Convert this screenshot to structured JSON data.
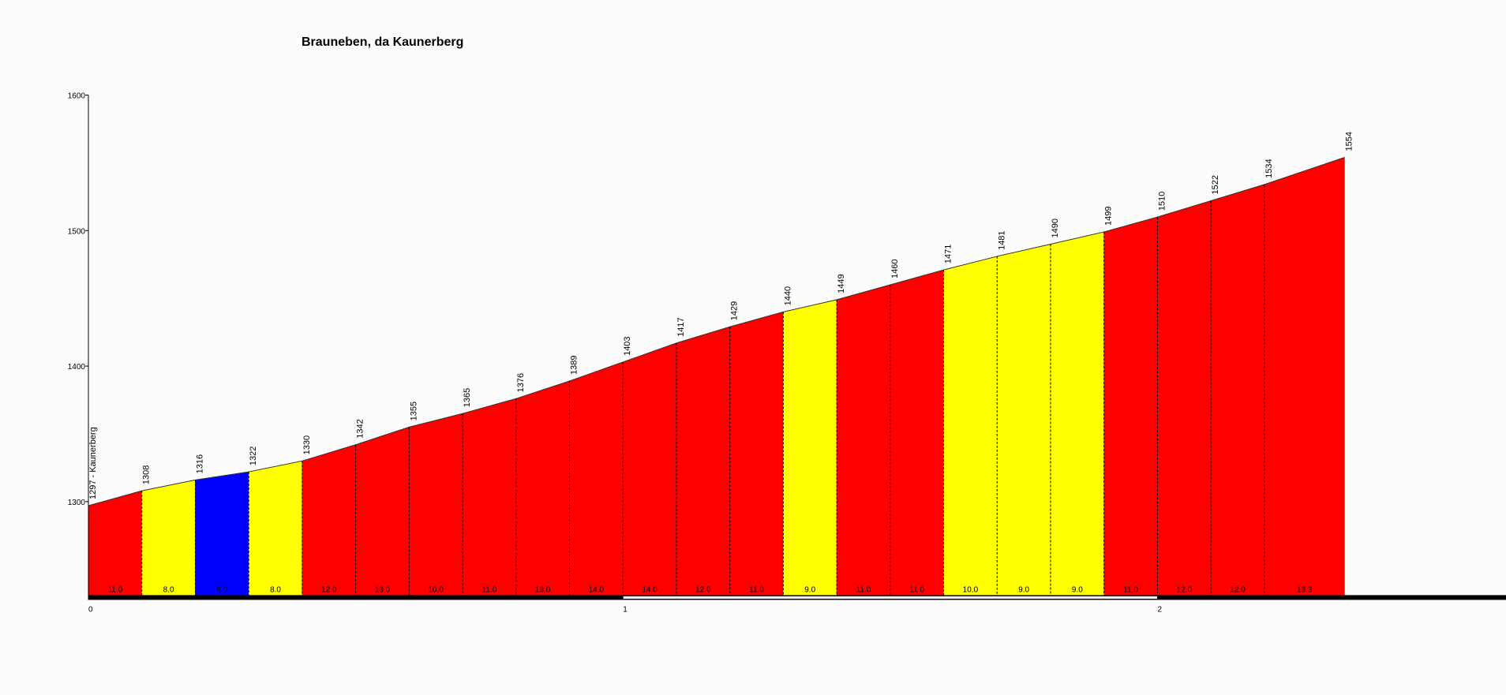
{
  "chart_data": {
    "type": "profile",
    "title": "Brauneben, da Kaunerberg",
    "x": [
      0,
      0.1,
      0.2,
      0.3,
      0.4,
      0.5,
      0.6,
      0.7,
      0.8,
      0.9,
      1.0,
      1.1,
      1.2,
      1.3,
      1.4,
      1.5,
      1.6,
      1.7,
      1.8,
      1.9,
      2.0,
      2.1,
      2.2,
      2.35
    ],
    "values": [
      1297,
      1308,
      1316,
      1322,
      1330,
      1342,
      1355,
      1365,
      1376,
      1389,
      1403,
      1417,
      1429,
      1440,
      1449,
      1460,
      1471,
      1481,
      1490,
      1499,
      1510,
      1522,
      1534,
      1554
    ],
    "value_labels": [
      "1297 - Kaunerberg",
      "1308",
      "1316",
      "1322",
      "1330",
      "1342",
      "1355",
      "1365",
      "1376",
      "1389",
      "1403",
      "1417",
      "1429",
      "1440",
      "1449",
      "1460",
      "1471",
      "1481",
      "1490",
      "1499",
      "1510",
      "1522",
      "1534",
      "1554"
    ],
    "gradients": [
      11,
      8,
      6,
      8,
      12,
      13,
      10,
      11,
      13,
      14,
      14,
      12,
      11,
      9,
      11,
      11,
      10,
      9,
      9,
      11,
      12,
      12,
      13.3
    ],
    "gradient_labels": [
      "11.0",
      "8.0",
      "6.0",
      "8.0",
      "12.0",
      "13.0",
      "10.0",
      "11.0",
      "13.0",
      "14.0",
      "14.0",
      "12.0",
      "11.0",
      "9.0",
      "11.0",
      "11.0",
      "10.0",
      "9.0",
      "9.0",
      "11.0",
      "12.0",
      "12.0",
      "13.3"
    ],
    "segment_colors": [
      "#fe0000",
      "#ffff00",
      "#0000fe",
      "#ffff00",
      "#fe0000",
      "#fe0000",
      "#fe0000",
      "#fe0000",
      "#fe0000",
      "#fe0000",
      "#fe0000",
      "#fe0000",
      "#fe0000",
      "#ffff00",
      "#fe0000",
      "#fe0000",
      "#ffff00",
      "#ffff00",
      "#ffff00",
      "#fe0000",
      "#fe0000",
      "#fe0000",
      "#fe0000"
    ],
    "xlim": [
      0,
      2.652
    ],
    "xticks": [
      0,
      1,
      2
    ],
    "ylim": [
      1231,
      1600
    ],
    "yticks": [
      1300,
      1400,
      1500,
      1600
    ]
  }
}
